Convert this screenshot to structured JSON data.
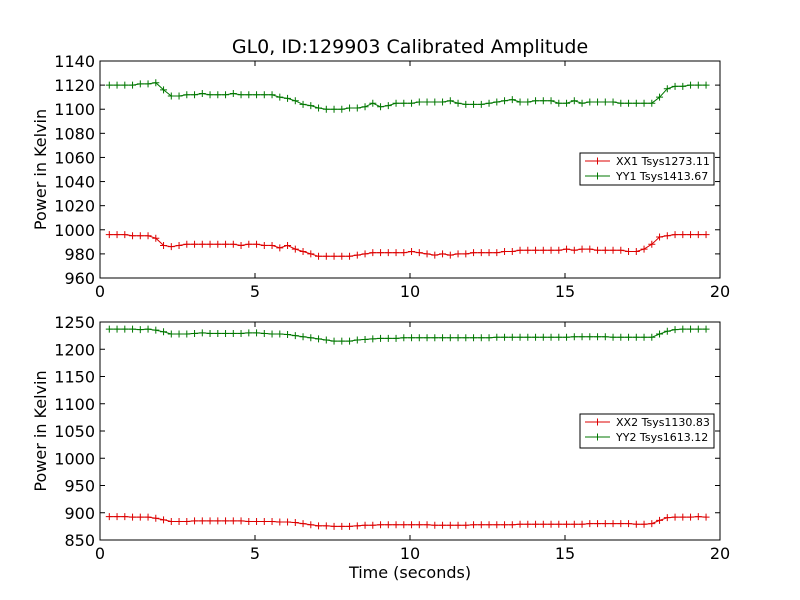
{
  "title": "GL0, ID:129903 Calibrated Amplitude",
  "xlabel": "Time (seconds)",
  "colors": {
    "XX": "#dd0000",
    "YY": "#007700"
  },
  "chart_data": [
    {
      "type": "line",
      "ylabel": "Power in Kelvin",
      "xlim": [
        0,
        20
      ],
      "ylim": [
        960,
        1140
      ],
      "xticks": [
        0,
        5,
        10,
        15,
        20
      ],
      "yticks": [
        960,
        980,
        1000,
        1020,
        1040,
        1060,
        1080,
        1100,
        1120,
        1140
      ],
      "grid": false,
      "legend_position": "center-right",
      "x": [
        0.3,
        0.55,
        0.8,
        1.05,
        1.3,
        1.55,
        1.8,
        2.05,
        2.3,
        2.55,
        2.8,
        3.05,
        3.3,
        3.55,
        3.8,
        4.05,
        4.3,
        4.55,
        4.8,
        5.05,
        5.3,
        5.55,
        5.8,
        6.05,
        6.3,
        6.55,
        6.8,
        7.05,
        7.3,
        7.55,
        7.8,
        8.05,
        8.3,
        8.55,
        8.8,
        9.05,
        9.3,
        9.55,
        9.8,
        10.05,
        10.3,
        10.55,
        10.8,
        11.05,
        11.3,
        11.55,
        11.8,
        12.05,
        12.3,
        12.55,
        12.8,
        13.05,
        13.3,
        13.55,
        13.8,
        14.05,
        14.3,
        14.55,
        14.8,
        15.05,
        15.3,
        15.55,
        15.8,
        16.05,
        16.3,
        16.55,
        16.8,
        17.05,
        17.3,
        17.55,
        17.8,
        18.05,
        18.3,
        18.55,
        18.8,
        19.05,
        19.3,
        19.55
      ],
      "series": [
        {
          "name": "XX1 Tsys1273.11",
          "color_key": "XX",
          "values": [
            996,
            996,
            996,
            995,
            995,
            995,
            993,
            987,
            986,
            987,
            988,
            988,
            988,
            988,
            988,
            988,
            988,
            987,
            988,
            988,
            987,
            987,
            985,
            987,
            984,
            982,
            980,
            978,
            978,
            978,
            978,
            978,
            979,
            980,
            981,
            981,
            981,
            981,
            981,
            982,
            981,
            980,
            979,
            980,
            979,
            980,
            980,
            981,
            981,
            981,
            981,
            982,
            982,
            983,
            983,
            983,
            983,
            983,
            983,
            984,
            983,
            984,
            984,
            983,
            983,
            983,
            983,
            982,
            982,
            984,
            988,
            994,
            995,
            996,
            996,
            996,
            996,
            996
          ]
        },
        {
          "name": "YY1 Tsys1413.67",
          "color_key": "YY",
          "values": [
            1120,
            1120,
            1120,
            1120,
            1121,
            1121,
            1122,
            1116,
            1111,
            1111,
            1112,
            1112,
            1113,
            1112,
            1112,
            1112,
            1113,
            1112,
            1112,
            1112,
            1112,
            1112,
            1110,
            1109,
            1107,
            1104,
            1103,
            1101,
            1100,
            1100,
            1100,
            1101,
            1101,
            1102,
            1105,
            1102,
            1103,
            1105,
            1105,
            1105,
            1106,
            1106,
            1106,
            1106,
            1107,
            1105,
            1104,
            1104,
            1104,
            1105,
            1106,
            1107,
            1108,
            1106,
            1106,
            1107,
            1107,
            1107,
            1105,
            1105,
            1107,
            1105,
            1106,
            1106,
            1106,
            1106,
            1105,
            1105,
            1105,
            1105,
            1105,
            1110,
            1117,
            1119,
            1119,
            1120,
            1120,
            1120
          ]
        }
      ]
    },
    {
      "type": "line",
      "ylabel": "Power in Kelvin",
      "xlim": [
        0,
        20
      ],
      "ylim": [
        850,
        1250
      ],
      "xticks": [
        0,
        5,
        10,
        15,
        20
      ],
      "yticks": [
        850,
        900,
        950,
        1000,
        1050,
        1100,
        1150,
        1200,
        1250
      ],
      "grid": false,
      "legend_position": "center-right",
      "x": [
        0.3,
        0.55,
        0.8,
        1.05,
        1.3,
        1.55,
        1.8,
        2.05,
        2.3,
        2.55,
        2.8,
        3.05,
        3.3,
        3.55,
        3.8,
        4.05,
        4.3,
        4.55,
        4.8,
        5.05,
        5.3,
        5.55,
        5.8,
        6.05,
        6.3,
        6.55,
        6.8,
        7.05,
        7.3,
        7.55,
        7.8,
        8.05,
        8.3,
        8.55,
        8.8,
        9.05,
        9.3,
        9.55,
        9.8,
        10.05,
        10.3,
        10.55,
        10.8,
        11.05,
        11.3,
        11.55,
        11.8,
        12.05,
        12.3,
        12.55,
        12.8,
        13.05,
        13.3,
        13.55,
        13.8,
        14.05,
        14.3,
        14.55,
        14.8,
        15.05,
        15.3,
        15.55,
        15.8,
        16.05,
        16.3,
        16.55,
        16.8,
        17.05,
        17.3,
        17.55,
        17.8,
        18.05,
        18.3,
        18.55,
        18.8,
        19.05,
        19.3,
        19.55
      ],
      "series": [
        {
          "name": "XX2 Tsys1130.83",
          "color_key": "XX",
          "values": [
            893,
            893,
            893,
            892,
            892,
            892,
            890,
            887,
            884,
            884,
            884,
            885,
            885,
            885,
            885,
            885,
            885,
            885,
            884,
            884,
            884,
            884,
            883,
            883,
            882,
            880,
            878,
            876,
            876,
            875,
            875,
            875,
            876,
            877,
            877,
            878,
            878,
            878,
            878,
            878,
            878,
            878,
            877,
            877,
            877,
            877,
            877,
            878,
            878,
            878,
            878,
            878,
            878,
            879,
            879,
            879,
            879,
            879,
            879,
            879,
            879,
            879,
            880,
            880,
            880,
            880,
            880,
            880,
            879,
            879,
            880,
            886,
            891,
            892,
            892,
            892,
            893,
            892
          ]
        },
        {
          "name": "YY2 Tsys1613.12",
          "color_key": "YY",
          "values": [
            1237,
            1237,
            1237,
            1237,
            1236,
            1237,
            1235,
            1232,
            1228,
            1228,
            1228,
            1229,
            1230,
            1229,
            1229,
            1229,
            1229,
            1229,
            1230,
            1230,
            1229,
            1228,
            1228,
            1227,
            1225,
            1223,
            1221,
            1219,
            1217,
            1215,
            1215,
            1215,
            1217,
            1218,
            1219,
            1220,
            1220,
            1220,
            1221,
            1221,
            1221,
            1221,
            1221,
            1221,
            1221,
            1221,
            1221,
            1221,
            1221,
            1221,
            1222,
            1222,
            1222,
            1222,
            1222,
            1222,
            1222,
            1222,
            1222,
            1222,
            1223,
            1223,
            1223,
            1223,
            1223,
            1222,
            1222,
            1222,
            1222,
            1222,
            1222,
            1228,
            1233,
            1236,
            1237,
            1237,
            1237,
            1237
          ]
        }
      ]
    }
  ]
}
